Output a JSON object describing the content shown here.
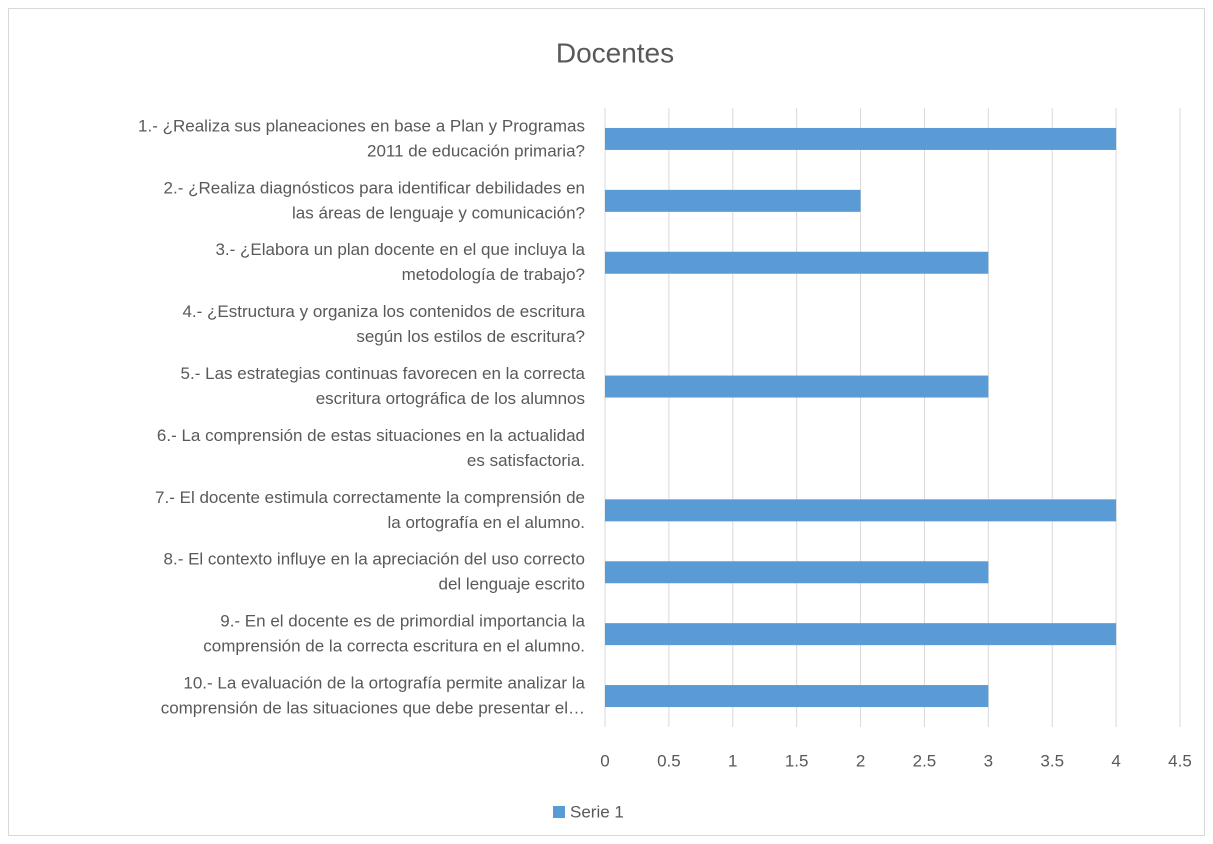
{
  "chart_data": {
    "type": "bar",
    "orientation": "horizontal",
    "title": "Docentes",
    "categories": [
      [
        "1.- ¿Realiza sus planeaciones en base a Plan y Programas",
        "2011 de educación primaria?"
      ],
      [
        "2.- ¿Realiza diagnósticos para identificar debilidades en",
        "las áreas de lenguaje y comunicación?"
      ],
      [
        "3.- ¿Elabora un plan docente en el que incluya la",
        "metodología de trabajo?"
      ],
      [
        "4.- ¿Estructura y organiza los contenidos de escritura",
        "según los estilos de escritura?"
      ],
      [
        "5.- Las estrategias continuas favorecen en la correcta",
        "escritura ortográfica de los alumnos"
      ],
      [
        "6.- La comprensión de estas situaciones en la actualidad",
        "es satisfactoria."
      ],
      [
        "7.- El docente estimula correctamente la comprensión de",
        "la ortografía en el alumno."
      ],
      [
        "8.- El contexto influye en la apreciación del uso correcto",
        "del lenguaje escrito"
      ],
      [
        "9.- En el docente es de primordial importancia la",
        "comprensión de la correcta escritura en el alumno."
      ],
      [
        "10.- La evaluación de la ortografía permite analizar la",
        "comprensión de las situaciones que debe presentar el…"
      ]
    ],
    "series": [
      {
        "name": "Serie 1",
        "color": "#5b9bd5",
        "values": [
          4,
          2,
          3,
          0,
          3,
          0,
          4,
          3,
          4,
          3
        ]
      }
    ],
    "xlim": [
      0,
      4.5
    ],
    "xticks": [
      0,
      0.5,
      1,
      1.5,
      2,
      2.5,
      3,
      3.5,
      4,
      4.5
    ],
    "grid": true,
    "legend": "bottom"
  }
}
